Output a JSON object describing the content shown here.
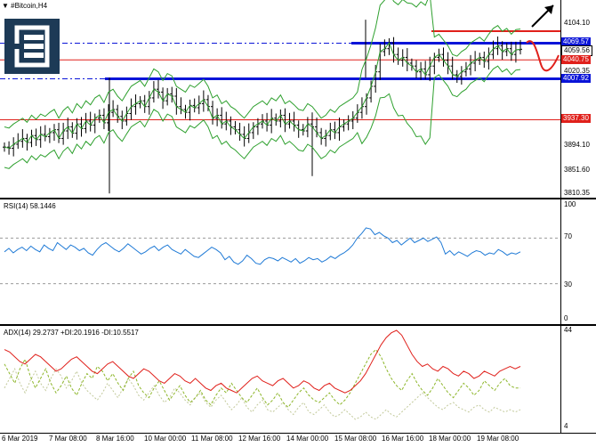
{
  "header": {
    "dropdown_icon": "chevron-down-icon",
    "symbol_label": "#Bitcoin,H4"
  },
  "logo": {
    "icon": "brand-logo-icon",
    "color": "#1d3a56"
  },
  "price_axis": {
    "ticks": [
      "4104.10",
      "4020.35",
      "3894.10",
      "3851.60",
      "3810.35"
    ],
    "tags": [
      {
        "text": "4069.57",
        "bg": "#0a14d8",
        "fg": "#ffffff"
      },
      {
        "text": "4059.56",
        "bg": "#ffffff",
        "fg": "#000000"
      },
      {
        "text": "4040.75",
        "bg": "#e0201b",
        "fg": "#ffffff"
      },
      {
        "text": "4007.92",
        "bg": "#0a14d8",
        "fg": "#ffffff"
      },
      {
        "text": "3937.30",
        "bg": "#e0201b",
        "fg": "#ffffff"
      }
    ]
  },
  "rsi": {
    "label": "RSI(14) 58.1446",
    "ticks": [
      "100",
      "70",
      "30",
      "0"
    ],
    "color": "#1f7ad6",
    "values": [
      58,
      61,
      57,
      60,
      62,
      59,
      63,
      60,
      58,
      64,
      61,
      59,
      66,
      63,
      60,
      64,
      62,
      59,
      61,
      57,
      55,
      60,
      64,
      66,
      63,
      60,
      58,
      61,
      65,
      62,
      59,
      56,
      58,
      61,
      63,
      59,
      62,
      64,
      60,
      58,
      56,
      60,
      57,
      54,
      53,
      56,
      59,
      62,
      60,
      57,
      51,
      54,
      49,
      47,
      50,
      55,
      52,
      48,
      47,
      51,
      53,
      52,
      50,
      53,
      51,
      49,
      52,
      48,
      50,
      53,
      51,
      52,
      49,
      51,
      54,
      52,
      55,
      57,
      60,
      64,
      70,
      74,
      79,
      78,
      73,
      75,
      72,
      70,
      66,
      68,
      64,
      67,
      70,
      66,
      68,
      70,
      67,
      69,
      71,
      66,
      56,
      59,
      55,
      58,
      56,
      54,
      57,
      59,
      58,
      55,
      57,
      56,
      60,
      58,
      55,
      57,
      56,
      58
    ]
  },
  "adx": {
    "label": "ADX(14) 29.2737 +DI:20.1916 -DI:10.5517",
    "ticks": [
      "44",
      "4"
    ],
    "colors": {
      "adx": "#e0201b",
      "plus_di": "#8db62a",
      "minus_di": "#c2c99a"
    }
  },
  "time_axis": {
    "labels": [
      "6 Mar 2019",
      "7 Mar 08:00",
      "8 Mar 16:00",
      "10 Mar 00:00",
      "11 Mar 08:00",
      "12 Mar 16:00",
      "14 Mar 00:00",
      "15 Mar 08:00",
      "16 Mar 16:00",
      "18 Mar 00:00",
      "19 Mar 08:00"
    ]
  },
  "colors": {
    "bollinger": "#2ea02e",
    "resistance_red": "#e0201b",
    "support_blue": "#0a14d8",
    "price_bars": "#000000"
  }
}
